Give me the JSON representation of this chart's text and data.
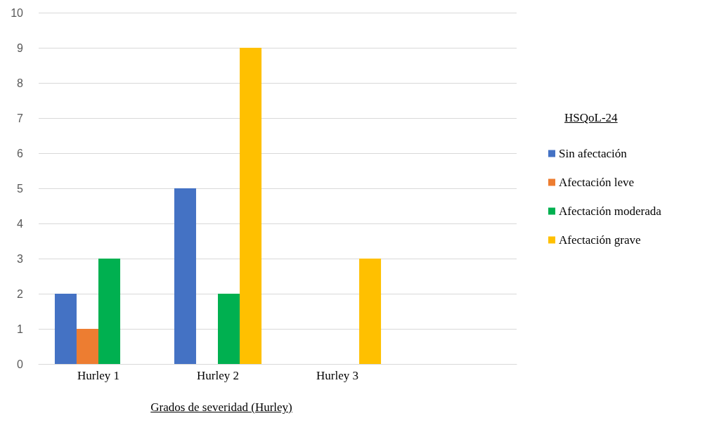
{
  "chart_data": {
    "type": "bar",
    "xlabel": "Grados de severidad (Hurley)",
    "legend_title": "HSQoL-24",
    "categories": [
      "Hurley 1",
      "Hurley 2",
      "Hurley 3",
      null
    ],
    "series": [
      {
        "name": "Sin afectación",
        "color": "#4472c4",
        "values": [
          2,
          5,
          0,
          null
        ]
      },
      {
        "name": "Afectación leve",
        "color": "#ed7d31",
        "values": [
          1,
          0,
          0,
          null
        ]
      },
      {
        "name": "Afectación moderada",
        "color": "#00b050",
        "values": [
          3,
          2,
          0,
          null
        ]
      },
      {
        "name": "Afectación grave",
        "color": "#ffc000",
        "values": [
          0,
          9,
          3,
          null
        ]
      }
    ],
    "ylim": [
      0,
      10
    ],
    "yticks": [
      0,
      1,
      2,
      3,
      4,
      5,
      6,
      7,
      8,
      9,
      10
    ],
    "grid": "y",
    "legend": "right"
  }
}
